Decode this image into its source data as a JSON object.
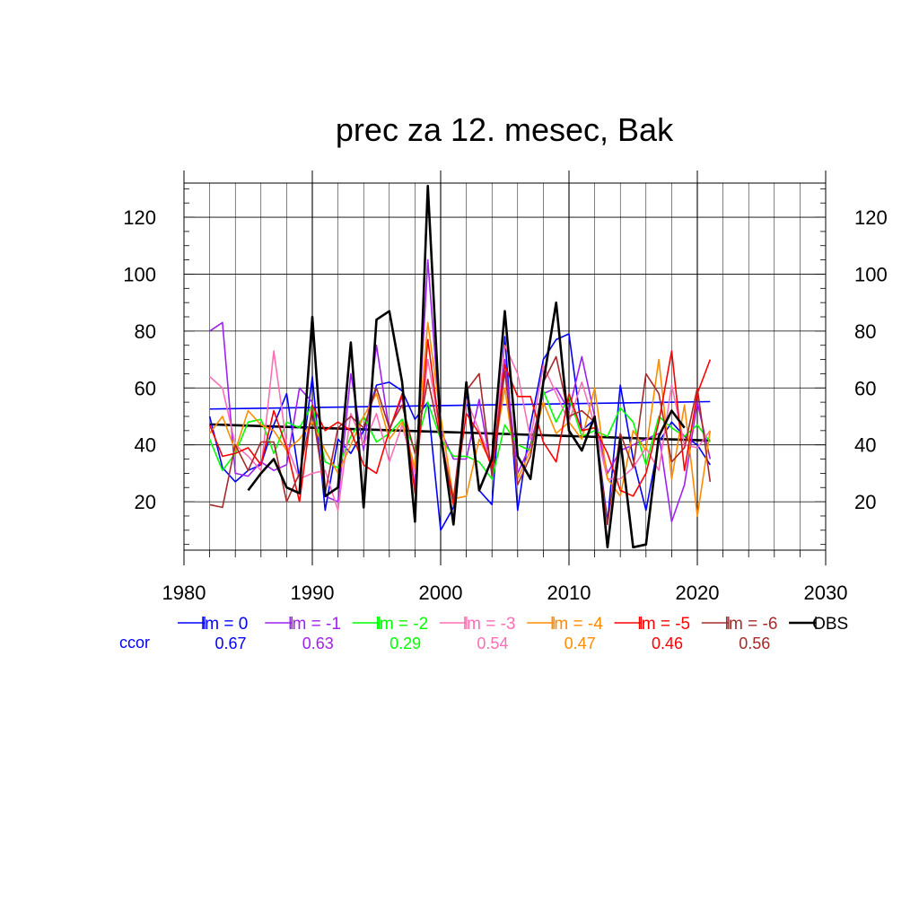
{
  "chart_data": {
    "type": "line",
    "title": "prec za 12. mesec, Bak",
    "xlabel": "",
    "ylabel": "",
    "xlim": [
      1980,
      2030
    ],
    "ylim": [
      3,
      132
    ],
    "x_ticks": [
      1980,
      1990,
      2000,
      2010,
      2020,
      2030
    ],
    "y_ticks": [
      20,
      40,
      60,
      80,
      100,
      120
    ],
    "grid": true,
    "legend_position": "bottom",
    "ccor_label": "ccor",
    "ccor_color": "#0000ff",
    "years": [
      1982,
      1983,
      1984,
      1985,
      1986,
      1987,
      1988,
      1989,
      1990,
      1991,
      1992,
      1993,
      1994,
      1995,
      1996,
      1997,
      1998,
      1999,
      2000,
      2001,
      2002,
      2003,
      2004,
      2005,
      2006,
      2007,
      2008,
      2009,
      2010,
      2011,
      2012,
      2013,
      2014,
      2015,
      2016,
      2017,
      2018,
      2019,
      2020,
      2021
    ],
    "series": [
      {
        "name": "lm = 0",
        "color": "#0000ff",
        "width": 1.6,
        "ccor": "0.67",
        "values": [
          50,
          32,
          27,
          31,
          33,
          47,
          58,
          28,
          64,
          17,
          42,
          37,
          45,
          61,
          62,
          59,
          49,
          55,
          10,
          18,
          58,
          24,
          19,
          78,
          17,
          47,
          70,
          77,
          79,
          45,
          49,
          13,
          61,
          35,
          17,
          41,
          48,
          43,
          40,
          33
        ]
      },
      {
        "name": "lm = -1",
        "color": "#a020f0",
        "width": 1.6,
        "ccor": "0.63",
        "values": [
          80,
          83,
          30,
          29,
          34,
          31,
          33,
          60,
          55,
          22,
          20,
          65,
          38,
          75,
          45,
          57,
          25,
          105,
          45,
          35,
          35,
          56,
          30,
          70,
          30,
          40,
          58,
          60,
          52,
          71,
          50,
          30,
          38,
          40,
          42,
          44,
          13,
          26,
          55,
          35
        ]
      },
      {
        "name": "lm = -2",
        "color": "#00ff00",
        "width": 1.6,
        "ccor": "0.29",
        "values": [
          42,
          31,
          37,
          48,
          49,
          37,
          48,
          46,
          54,
          34,
          32,
          43,
          50,
          41,
          44,
          49,
          38,
          55,
          42,
          36,
          36,
          34,
          28,
          47,
          40,
          38,
          59,
          48,
          57,
          43,
          45,
          43,
          53,
          48,
          33,
          50,
          46,
          43,
          47,
          41
        ]
      },
      {
        "name": "lm = -3",
        "color": "#ff6eb4",
        "width": 1.6,
        "ccor": "0.54",
        "values": [
          64,
          60,
          40,
          36,
          31,
          73,
          40,
          28,
          30,
          31,
          17,
          51,
          40,
          51,
          34,
          47,
          30,
          70,
          44,
          20,
          56,
          45,
          34,
          75,
          65,
          42,
          68,
          58,
          48,
          62,
          47,
          28,
          28,
          32,
          39,
          31,
          61,
          40,
          39,
          45
        ]
      },
      {
        "name": "lm = -4",
        "color": "#ff8c00",
        "width": 1.6,
        "ccor": "0.47",
        "values": [
          44,
          50,
          38,
          52,
          47,
          45,
          38,
          42,
          48,
          38,
          30,
          40,
          50,
          58,
          42,
          48,
          32,
          83,
          50,
          21,
          22,
          42,
          33,
          60,
          28,
          38,
          55,
          44,
          48,
          42,
          60,
          28,
          22,
          45,
          38,
          70,
          28,
          54,
          15,
          45
        ]
      },
      {
        "name": "lm = -5",
        "color": "#ff0000",
        "width": 1.6,
        "ccor": "0.46",
        "values": [
          47,
          36,
          37,
          39,
          33,
          52,
          39,
          20,
          54,
          45,
          48,
          45,
          33,
          30,
          45,
          58,
          23,
          77,
          43,
          19,
          51,
          44,
          32,
          68,
          57,
          57,
          41,
          34,
          58,
          45,
          46,
          37,
          24,
          22,
          30,
          48,
          73,
          31,
          58,
          70
        ]
      },
      {
        "name": "lm = -6",
        "color": "#a52a2a",
        "width": 1.6,
        "ccor": "0.56",
        "values": [
          19,
          18,
          40,
          31,
          41,
          41,
          20,
          30,
          52,
          23,
          46,
          50,
          46,
          60,
          46,
          54,
          37,
          63,
          42,
          21,
          59,
          65,
          29,
          66,
          26,
          36,
          62,
          71,
          50,
          52,
          48,
          12,
          44,
          32,
          65,
          58,
          34,
          39,
          60,
          27
        ]
      },
      {
        "name": "OBS",
        "color": "#000000",
        "width": 2.6,
        "ccor": "",
        "values": [
          null,
          null,
          null,
          24,
          30,
          35,
          25,
          23,
          85,
          22,
          25,
          76,
          18,
          84,
          87,
          62,
          13,
          131,
          44,
          12,
          62,
          24,
          35,
          87,
          36,
          28,
          62,
          90,
          45,
          38,
          50,
          4,
          42,
          4,
          5,
          43,
          52,
          46,
          null,
          null
        ]
      }
    ],
    "trend_lines": [
      {
        "color": "#0000ff",
        "x": [
          1982,
          2021
        ],
        "y": [
          52.6,
          55.2
        ]
      },
      {
        "color": "#000000",
        "x": [
          1982,
          2021
        ],
        "y": [
          47.2,
          41.5
        ]
      }
    ]
  }
}
